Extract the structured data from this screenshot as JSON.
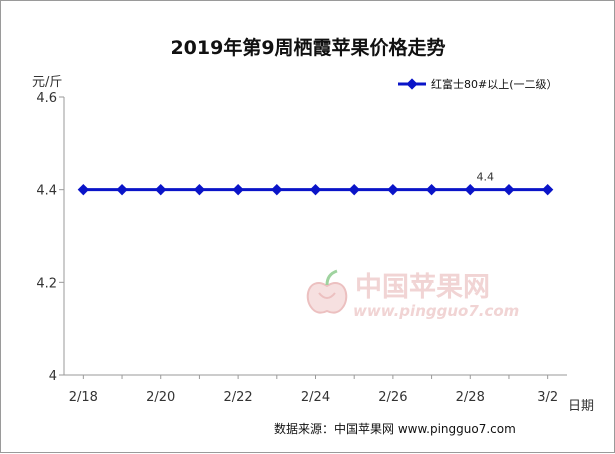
{
  "chart_data": {
    "type": "line",
    "title": "2019年第9周栖霞苹果价格走势",
    "ylabel": "元/斤",
    "xlabel": "日期",
    "ylim": [
      4,
      4.6
    ],
    "yticks": [
      "4.6",
      "4.4",
      "4.2",
      "4"
    ],
    "ytick_values": [
      4.6,
      4.4,
      4.2,
      4.0
    ],
    "x": [
      "2/18",
      "2/19",
      "2/20",
      "2/21",
      "2/22",
      "2/23",
      "2/24",
      "2/25",
      "2/26",
      "2/27",
      "2/28",
      "3/1",
      "3/2"
    ],
    "xtick_labels": [
      "2/18",
      "2/20",
      "2/22",
      "2/24",
      "2/26",
      "2/28",
      "3/2"
    ],
    "series": [
      {
        "name": "红富士80#以上(一二级）",
        "values": [
          4.4,
          4.4,
          4.4,
          4.4,
          4.4,
          4.4,
          4.4,
          4.4,
          4.4,
          4.4,
          4.4,
          4.4,
          4.4
        ],
        "color": "#0a14c8"
      }
    ],
    "annotations": [
      {
        "label": "4.4",
        "x": "2/28",
        "y": 4.4
      }
    ],
    "legend_position": "top-right",
    "grid": false
  },
  "watermark": {
    "name": "中国苹果网",
    "url": "www.pingguo7.com"
  },
  "source": "数据来源：中国苹果网 www.pingguo7.com"
}
